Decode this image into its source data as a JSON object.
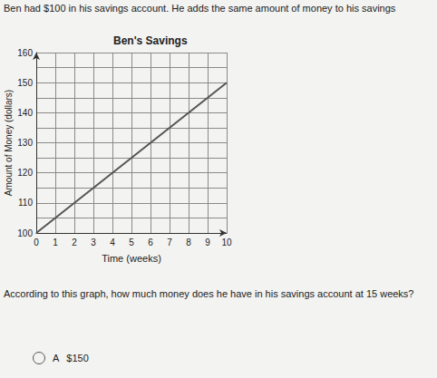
{
  "header": {
    "text": "Ben had $100 in his savings account. He adds the same amount of money to his savings"
  },
  "chart_data": {
    "type": "line",
    "title": "Ben's Savings",
    "xlabel": "Time (weeks)",
    "ylabel": "Amount of Money (dollars)",
    "x": [
      0,
      10
    ],
    "values": [
      100,
      150
    ],
    "color": "#555555",
    "marker": "none",
    "line_style": "solid",
    "xlim": [
      0,
      10
    ],
    "ylim": [
      100,
      160
    ],
    "xticks": [
      0,
      1,
      2,
      3,
      4,
      5,
      6,
      7,
      8,
      9,
      10
    ],
    "yticks": [
      100,
      110,
      120,
      130,
      140,
      150,
      160
    ],
    "grid": true
  },
  "question": {
    "text": "According to this graph, how much money does he have in his savings account at 15 weeks?"
  },
  "options": [
    {
      "letter": "A",
      "text": "$150"
    }
  ]
}
